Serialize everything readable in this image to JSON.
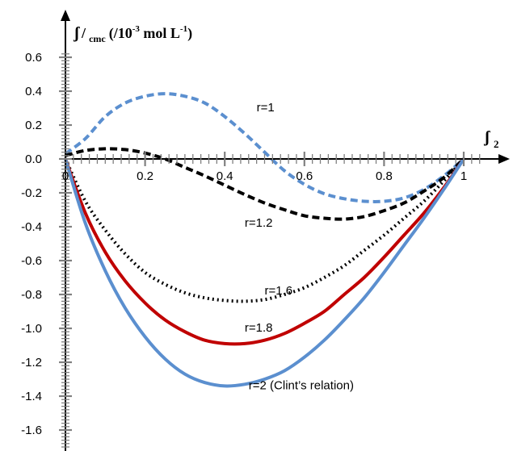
{
  "chart_data": {
    "type": "line",
    "title": "",
    "ylabel": {
      "symbol": "ʃ",
      "slash": "/",
      "subscript": "cmc",
      "units_open": "(/10",
      "units_exp": "-3",
      "units_mid": " mol L",
      "units_exp2": "-1",
      "units_close": ")"
    },
    "xlabel": {
      "symbol": "ʃ",
      "subscript": "2"
    },
    "xlim": [
      0,
      1
    ],
    "ylim": [
      -1.7,
      0.7
    ],
    "x_ticks": [
      "0",
      "0.2",
      "0.4",
      "0.6",
      "0.8",
      "1"
    ],
    "y_ticks": [
      "0.6",
      "0.4",
      "0.2",
      "0.0",
      "-0.2",
      "-0.4",
      "-0.6",
      "-0.8",
      "-1.0",
      "-1.2",
      "-1.4",
      "-1.6"
    ],
    "grid": false,
    "legend": "none",
    "series": [
      {
        "name": "r=1",
        "color": "#5b8fcf",
        "style": "dashed",
        "x": [
          0,
          0.05,
          0.1,
          0.15,
          0.2,
          0.25,
          0.3,
          0.35,
          0.4,
          0.45,
          0.5,
          0.55,
          0.6,
          0.65,
          0.7,
          0.75,
          0.8,
          0.85,
          0.9,
          0.95,
          1.0
        ],
        "y": [
          0.03,
          0.12,
          0.25,
          0.33,
          0.37,
          0.385,
          0.37,
          0.33,
          0.25,
          0.15,
          0.04,
          -0.07,
          -0.15,
          -0.205,
          -0.235,
          -0.25,
          -0.25,
          -0.23,
          -0.18,
          -0.1,
          0.0
        ]
      },
      {
        "name": "r=1.2",
        "color": "#000000",
        "style": "dashed",
        "x": [
          0,
          0.05,
          0.1,
          0.15,
          0.2,
          0.25,
          0.3,
          0.35,
          0.4,
          0.45,
          0.5,
          0.55,
          0.6,
          0.65,
          0.7,
          0.75,
          0.8,
          0.85,
          0.9,
          0.95,
          1.0
        ],
        "y": [
          0.02,
          0.05,
          0.06,
          0.055,
          0.035,
          0.0,
          -0.05,
          -0.1,
          -0.155,
          -0.21,
          -0.26,
          -0.3,
          -0.335,
          -0.35,
          -0.355,
          -0.34,
          -0.305,
          -0.26,
          -0.19,
          -0.11,
          0.0
        ]
      },
      {
        "name": "r=1.6",
        "color": "#000000",
        "style": "dotted",
        "x": [
          0,
          0.05,
          0.1,
          0.15,
          0.2,
          0.25,
          0.3,
          0.35,
          0.4,
          0.45,
          0.5,
          0.55,
          0.6,
          0.65,
          0.7,
          0.75,
          0.8,
          0.85,
          0.9,
          0.95,
          1.0
        ],
        "y": [
          0.0,
          -0.25,
          -0.42,
          -0.56,
          -0.67,
          -0.74,
          -0.79,
          -0.82,
          -0.835,
          -0.84,
          -0.83,
          -0.8,
          -0.76,
          -0.7,
          -0.63,
          -0.54,
          -0.45,
          -0.35,
          -0.25,
          -0.13,
          0.0
        ]
      },
      {
        "name": "r=1.8",
        "color": "#c00000",
        "style": "solid",
        "x": [
          0,
          0.05,
          0.1,
          0.15,
          0.2,
          0.25,
          0.3,
          0.35,
          0.4,
          0.45,
          0.5,
          0.55,
          0.6,
          0.65,
          0.7,
          0.75,
          0.8,
          0.85,
          0.9,
          0.95,
          1.0
        ],
        "y": [
          0.0,
          -0.32,
          -0.55,
          -0.72,
          -0.85,
          -0.95,
          -1.02,
          -1.07,
          -1.09,
          -1.09,
          -1.07,
          -1.03,
          -0.97,
          -0.9,
          -0.8,
          -0.7,
          -0.58,
          -0.45,
          -0.32,
          -0.17,
          0.0
        ]
      },
      {
        "name": "r=2 (Clint’s relation)",
        "color": "#5b8fcf",
        "style": "solid",
        "x": [
          0,
          0.05,
          0.1,
          0.15,
          0.2,
          0.25,
          0.3,
          0.35,
          0.4,
          0.45,
          0.5,
          0.55,
          0.6,
          0.65,
          0.7,
          0.75,
          0.8,
          0.85,
          0.9,
          0.95,
          1.0
        ],
        "y": [
          0.0,
          -0.38,
          -0.66,
          -0.88,
          -1.05,
          -1.18,
          -1.27,
          -1.32,
          -1.34,
          -1.33,
          -1.3,
          -1.25,
          -1.17,
          -1.07,
          -0.95,
          -0.82,
          -0.67,
          -0.51,
          -0.35,
          -0.18,
          0.0
        ]
      }
    ],
    "annotations": [
      {
        "text": "r=1",
        "x": 0.48,
        "y": 0.28
      },
      {
        "text": "r=1.2",
        "x": 0.45,
        "y": -0.4
      },
      {
        "text": "r=1.6",
        "x": 0.5,
        "y": -0.8
      },
      {
        "text": "r=1.8",
        "x": 0.45,
        "y": -1.02
      },
      {
        "text": "r=2 (Clint’s relation)",
        "x": 0.46,
        "y": -1.36
      }
    ]
  }
}
